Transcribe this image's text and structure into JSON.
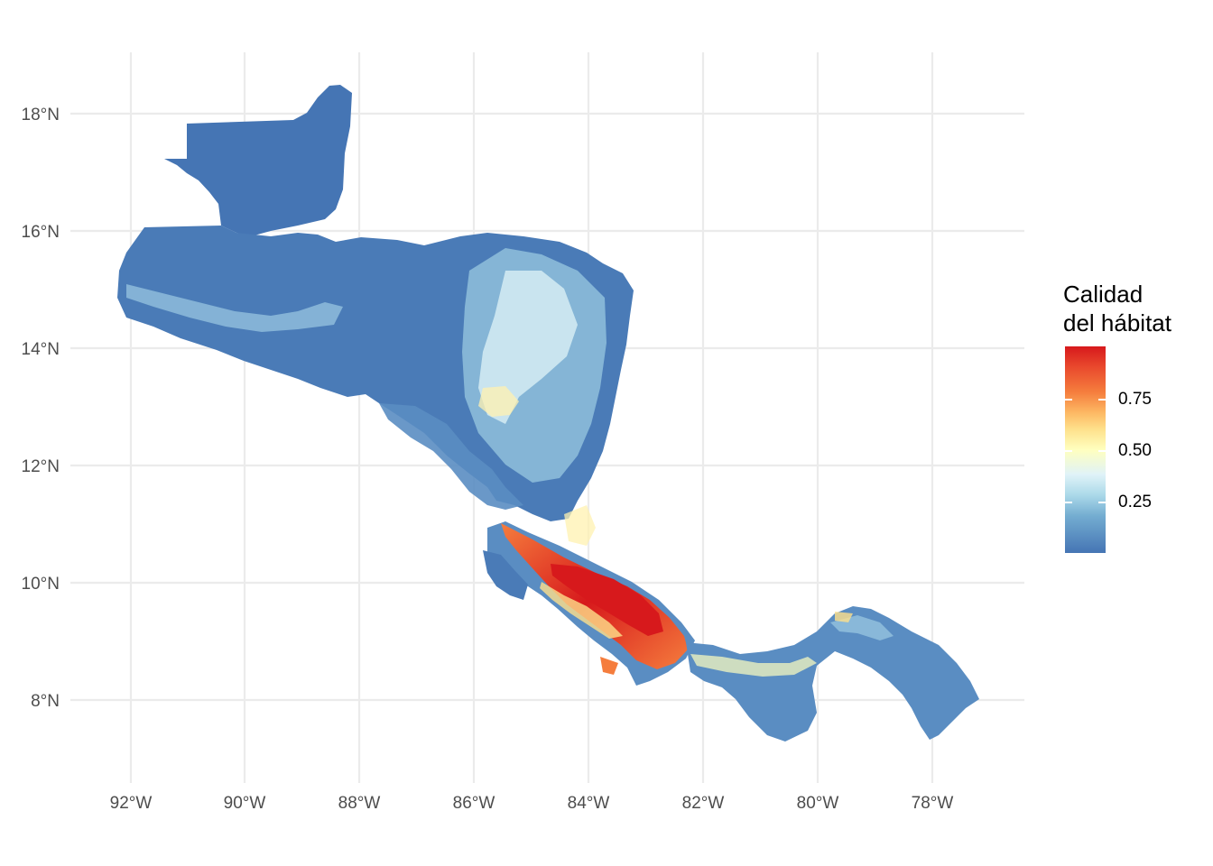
{
  "map": {
    "x_ticks": [
      "92°W",
      "90°W",
      "88°W",
      "86°W",
      "84°W",
      "82°W",
      "80°W",
      "78°W"
    ],
    "y_ticks": [
      "18°N",
      "16°N",
      "14°N",
      "12°N",
      "10°N",
      "8°N"
    ],
    "region": "Central America",
    "color_scale": [
      "#4575b4",
      "#74add1",
      "#abd9e9",
      "#e0f3f8",
      "#ffffbf",
      "#fee08b",
      "#fdb863",
      "#f57d3d",
      "#d7191c"
    ],
    "high_value_area": "Costa Rica / western Panama highlands"
  },
  "legend": {
    "title_line1": "Calidad",
    "title_line2": "del hábitat",
    "labels": [
      "0.75",
      "0.50",
      "0.25"
    ]
  }
}
